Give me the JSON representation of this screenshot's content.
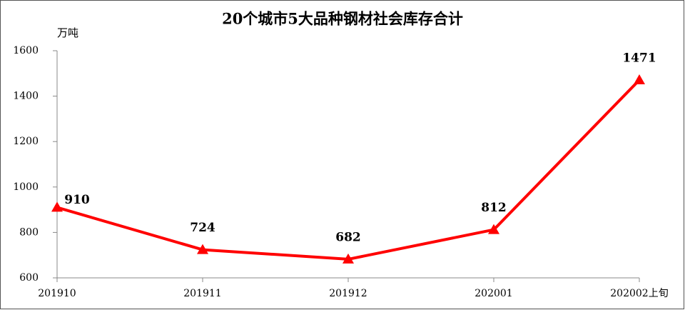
{
  "chart_data": {
    "type": "line",
    "title": "20个城市5大品种钢材社会库存合计",
    "y_unit": "万吨",
    "categories": [
      "201910",
      "201911",
      "201912",
      "202001",
      "202002上旬"
    ],
    "series": [
      {
        "name": "社会库存合计",
        "color": "#ff0000",
        "values": [
          910,
          724,
          682,
          812,
          1471
        ]
      }
    ],
    "ylim": [
      600,
      1600
    ],
    "yticks": [
      600,
      800,
      1000,
      1200,
      1400,
      1600
    ],
    "grid": false,
    "data_labels": true
  }
}
